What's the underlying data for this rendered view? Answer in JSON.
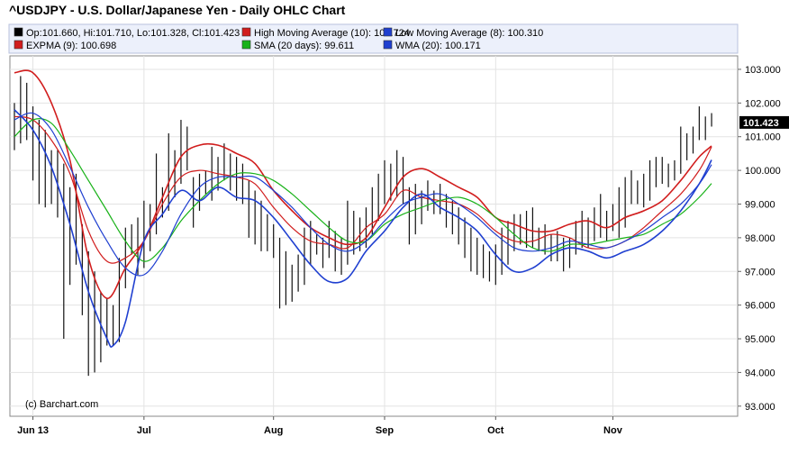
{
  "chart_data": {
    "type": "line",
    "title": "^USDJPY - U.S. Dollar/Japanese Yen - Daily OHLC Chart",
    "credit": "(c) Barchart.com",
    "legend": [
      {
        "text": "Op:101.660, Hi:101.710, Lo:101.328, Cl:101.423",
        "color": "#000000"
      },
      {
        "text": "High Moving Average (10): 100.724",
        "color": "#d11d1d"
      },
      {
        "text": "Low Moving Average (8): 100.310",
        "color": "#1f3fd0"
      },
      {
        "text": "EXPMA (9): 100.698",
        "color": "#d11d1d"
      },
      {
        "text": "SMA (20 days): 99.611",
        "color": "#19b219"
      },
      {
        "text": "WMA (20): 100.171",
        "color": "#1f3fd0"
      }
    ],
    "last_value_label": "101.423",
    "last_value": 101.423,
    "ylim": [
      92.7,
      103.4
    ],
    "y_ticks": [
      93,
      94,
      95,
      96,
      97,
      98,
      99,
      100,
      101,
      102,
      103
    ],
    "y_tick_labels": [
      "93.000",
      "94.000",
      "95.000",
      "96.000",
      "97.000",
      "98.000",
      "99.000",
      "100.000",
      "101.000",
      "102.000",
      "103.000"
    ],
    "x_count": 114,
    "x_ticks": [
      {
        "label": "Jun 13",
        "index": 3
      },
      {
        "label": "Jul",
        "index": 21
      },
      {
        "label": "Aug",
        "index": 42
      },
      {
        "label": "Sep",
        "index": 60
      },
      {
        "label": "Oct",
        "index": 78
      },
      {
        "label": "Nov",
        "index": 97
      }
    ],
    "ohlc": [
      {
        "h": 102.0,
        "l": 100.6
      },
      {
        "h": 102.8,
        "l": 100.8
      },
      {
        "h": 102.6,
        "l": 100.9
      },
      {
        "h": 101.9,
        "l": 99.7
      },
      {
        "h": 101.5,
        "l": 99.0
      },
      {
        "h": 101.2,
        "l": 98.9
      },
      {
        "h": 100.6,
        "l": 99.0
      },
      {
        "h": 100.6,
        "l": 98.6
      },
      {
        "h": 100.2,
        "l": 95.0
      },
      {
        "h": 99.5,
        "l": 96.6
      },
      {
        "h": 99.9,
        "l": 97.2
      },
      {
        "h": 98.4,
        "l": 95.7
      },
      {
        "h": 97.6,
        "l": 93.9
      },
      {
        "h": 97.0,
        "l": 94.0
      },
      {
        "h": 96.4,
        "l": 94.3
      },
      {
        "h": 96.2,
        "l": 94.8
      },
      {
        "h": 96.0,
        "l": 94.8
      },
      {
        "h": 97.4,
        "l": 94.9
      },
      {
        "h": 98.3,
        "l": 96.5
      },
      {
        "h": 98.4,
        "l": 97.5
      },
      {
        "h": 98.6,
        "l": 96.9
      },
      {
        "h": 99.1,
        "l": 97.1
      },
      {
        "h": 99.0,
        "l": 97.6
      },
      {
        "h": 100.5,
        "l": 98.1
      },
      {
        "h": 99.5,
        "l": 98.6
      },
      {
        "h": 101.1,
        "l": 98.8
      },
      {
        "h": 100.6,
        "l": 99.2
      },
      {
        "h": 101.5,
        "l": 99.6
      },
      {
        "h": 101.3,
        "l": 100.0
      },
      {
        "h": 99.8,
        "l": 98.3
      },
      {
        "h": 99.9,
        "l": 98.8
      },
      {
        "h": 100.0,
        "l": 99.3
      },
      {
        "h": 100.7,
        "l": 99.1
      },
      {
        "h": 100.4,
        "l": 99.4
      },
      {
        "h": 100.8,
        "l": 99.7
      },
      {
        "h": 100.5,
        "l": 99.4
      },
      {
        "h": 100.4,
        "l": 99.1
      },
      {
        "h": 100.2,
        "l": 99.0
      },
      {
        "h": 99.7,
        "l": 98.0
      },
      {
        "h": 99.4,
        "l": 97.8
      },
      {
        "h": 99.1,
        "l": 97.6
      },
      {
        "h": 98.7,
        "l": 97.6
      },
      {
        "h": 98.4,
        "l": 97.4
      },
      {
        "h": 98.0,
        "l": 95.9
      },
      {
        "h": 97.6,
        "l": 96.0
      },
      {
        "h": 97.2,
        "l": 96.1
      },
      {
        "h": 97.5,
        "l": 96.4
      },
      {
        "h": 98.3,
        "l": 96.6
      },
      {
        "h": 98.5,
        "l": 97.2
      },
      {
        "h": 98.1,
        "l": 97.5
      },
      {
        "h": 98.0,
        "l": 97.1
      },
      {
        "h": 98.5,
        "l": 97.4
      },
      {
        "h": 98.2,
        "l": 97.0
      },
      {
        "h": 98.0,
        "l": 96.9
      },
      {
        "h": 99.1,
        "l": 97.2
      },
      {
        "h": 98.8,
        "l": 97.5
      },
      {
        "h": 98.6,
        "l": 97.6
      },
      {
        "h": 98.9,
        "l": 97.7
      },
      {
        "h": 99.5,
        "l": 98.1
      },
      {
        "h": 99.9,
        "l": 98.5
      },
      {
        "h": 100.3,
        "l": 99.0
      },
      {
        "h": 100.2,
        "l": 99.1
      },
      {
        "h": 100.6,
        "l": 99.2
      },
      {
        "h": 100.4,
        "l": 99.0
      },
      {
        "h": 99.5,
        "l": 97.8
      },
      {
        "h": 99.6,
        "l": 98.1
      },
      {
        "h": 99.4,
        "l": 98.4
      },
      {
        "h": 99.7,
        "l": 98.8
      },
      {
        "h": 99.4,
        "l": 98.7
      },
      {
        "h": 99.6,
        "l": 98.7
      },
      {
        "h": 99.3,
        "l": 98.3
      },
      {
        "h": 99.1,
        "l": 98.1
      },
      {
        "h": 98.9,
        "l": 97.8
      },
      {
        "h": 98.6,
        "l": 97.4
      },
      {
        "h": 98.3,
        "l": 97.0
      },
      {
        "h": 98.0,
        "l": 96.9
      },
      {
        "h": 97.8,
        "l": 96.8
      },
      {
        "h": 97.6,
        "l": 96.7
      },
      {
        "h": 97.8,
        "l": 96.6
      },
      {
        "h": 98.3,
        "l": 96.9
      },
      {
        "h": 98.5,
        "l": 97.2
      },
      {
        "h": 98.7,
        "l": 97.6
      },
      {
        "h": 98.7,
        "l": 97.8
      },
      {
        "h": 98.8,
        "l": 97.7
      },
      {
        "h": 98.9,
        "l": 97.7
      },
      {
        "h": 98.3,
        "l": 97.6
      },
      {
        "h": 98.4,
        "l": 97.5
      },
      {
        "h": 98.1,
        "l": 97.3
      },
      {
        "h": 98.2,
        "l": 97.3
      },
      {
        "h": 98.0,
        "l": 97.0
      },
      {
        "h": 98.0,
        "l": 97.1
      },
      {
        "h": 98.5,
        "l": 97.5
      },
      {
        "h": 98.8,
        "l": 97.7
      },
      {
        "h": 98.6,
        "l": 97.7
      },
      {
        "h": 98.9,
        "l": 97.9
      },
      {
        "h": 99.3,
        "l": 98.0
      },
      {
        "h": 98.8,
        "l": 97.9
      },
      {
        "h": 99.0,
        "l": 98.2
      },
      {
        "h": 99.5,
        "l": 98.0
      },
      {
        "h": 99.8,
        "l": 98.3
      },
      {
        "h": 100.0,
        "l": 99.0
      },
      {
        "h": 99.7,
        "l": 99.0
      },
      {
        "h": 99.9,
        "l": 98.9
      },
      {
        "h": 100.3,
        "l": 99.1
      },
      {
        "h": 100.4,
        "l": 99.5
      },
      {
        "h": 100.4,
        "l": 99.6
      },
      {
        "h": 100.2,
        "l": 99.5
      },
      {
        "h": 100.3,
        "l": 99.7
      },
      {
        "h": 101.3,
        "l": 99.9
      },
      {
        "h": 101.1,
        "l": 100.3
      },
      {
        "h": 101.3,
        "l": 100.5
      },
      {
        "h": 101.9,
        "l": 100.9
      },
      {
        "h": 101.6,
        "l": 100.9
      },
      {
        "h": 101.7,
        "l": 101.3
      }
    ],
    "series": [
      {
        "name": "High Moving Average (10)",
        "color": "#d11d1d",
        "width": 1.6,
        "points": [
          [
            0,
            102.9
          ],
          [
            3,
            102.9
          ],
          [
            6,
            102.0
          ],
          [
            9,
            100.3
          ],
          [
            12,
            97.4
          ],
          [
            15,
            96.2
          ],
          [
            18,
            97.1
          ],
          [
            21,
            97.9
          ],
          [
            24,
            99.2
          ],
          [
            27,
            100.4
          ],
          [
            30,
            100.75
          ],
          [
            33,
            100.75
          ],
          [
            36,
            100.5
          ],
          [
            39,
            100.2
          ],
          [
            42,
            99.4
          ],
          [
            45,
            98.8
          ],
          [
            48,
            98.3
          ],
          [
            51,
            98.0
          ],
          [
            54,
            97.8
          ],
          [
            57,
            98.0
          ],
          [
            60,
            98.9
          ],
          [
            63,
            99.8
          ],
          [
            66,
            100.05
          ],
          [
            69,
            99.8
          ],
          [
            72,
            99.5
          ],
          [
            75,
            99.2
          ],
          [
            78,
            98.6
          ],
          [
            81,
            98.4
          ],
          [
            84,
            98.2
          ],
          [
            87,
            98.2
          ],
          [
            90,
            98.4
          ],
          [
            93,
            98.5
          ],
          [
            96,
            98.3
          ],
          [
            99,
            98.6
          ],
          [
            102,
            98.8
          ],
          [
            105,
            99.1
          ],
          [
            108,
            99.7
          ],
          [
            111,
            100.4
          ],
          [
            113,
            100.724
          ]
        ]
      },
      {
        "name": "EXPMA (9)",
        "color": "#d11d1d",
        "width": 1.2,
        "points": [
          [
            0,
            101.6
          ],
          [
            3,
            101.5
          ],
          [
            6,
            100.9
          ],
          [
            9,
            99.9
          ],
          [
            12,
            98.2
          ],
          [
            15,
            97.3
          ],
          [
            18,
            97.4
          ],
          [
            21,
            97.9
          ],
          [
            24,
            99.0
          ],
          [
            27,
            99.8
          ],
          [
            30,
            100.0
          ],
          [
            33,
            99.9
          ],
          [
            36,
            99.8
          ],
          [
            39,
            99.6
          ],
          [
            42,
            98.9
          ],
          [
            45,
            98.3
          ],
          [
            48,
            97.9
          ],
          [
            51,
            97.8
          ],
          [
            54,
            97.7
          ],
          [
            57,
            98.3
          ],
          [
            60,
            98.7
          ],
          [
            63,
            99.4
          ],
          [
            66,
            99.2
          ],
          [
            69,
            99.1
          ],
          [
            72,
            99.0
          ],
          [
            75,
            98.7
          ],
          [
            78,
            98.2
          ],
          [
            81,
            97.9
          ],
          [
            84,
            97.9
          ],
          [
            87,
            98.1
          ],
          [
            90,
            98.0
          ],
          [
            93,
            97.7
          ],
          [
            96,
            97.7
          ],
          [
            99,
            97.9
          ],
          [
            102,
            98.3
          ],
          [
            105,
            98.8
          ],
          [
            108,
            99.3
          ],
          [
            111,
            100.0
          ],
          [
            113,
            100.698
          ]
        ]
      },
      {
        "name": "SMA (20 days)",
        "color": "#19b219",
        "width": 1.2,
        "points": [
          [
            0,
            101.0
          ],
          [
            3,
            101.5
          ],
          [
            6,
            101.4
          ],
          [
            9,
            100.6
          ],
          [
            12,
            99.7
          ],
          [
            15,
            98.8
          ],
          [
            18,
            97.9
          ],
          [
            21,
            97.3
          ],
          [
            24,
            97.7
          ],
          [
            27,
            98.5
          ],
          [
            30,
            99.1
          ],
          [
            33,
            99.6
          ],
          [
            36,
            99.9
          ],
          [
            39,
            99.9
          ],
          [
            42,
            99.7
          ],
          [
            45,
            99.3
          ],
          [
            48,
            98.8
          ],
          [
            51,
            98.3
          ],
          [
            54,
            97.9
          ],
          [
            57,
            97.9
          ],
          [
            60,
            98.4
          ],
          [
            63,
            98.7
          ],
          [
            66,
            98.9
          ],
          [
            69,
            99.1
          ],
          [
            72,
            99.2
          ],
          [
            75,
            99.0
          ],
          [
            78,
            98.6
          ],
          [
            81,
            98.1
          ],
          [
            84,
            97.7
          ],
          [
            87,
            97.6
          ],
          [
            90,
            97.8
          ],
          [
            93,
            97.8
          ],
          [
            96,
            97.9
          ],
          [
            99,
            98.0
          ],
          [
            102,
            98.1
          ],
          [
            105,
            98.4
          ],
          [
            108,
            98.7
          ],
          [
            111,
            99.2
          ],
          [
            113,
            99.611
          ]
        ]
      },
      {
        "name": "WMA (20)",
        "color": "#1f3fd0",
        "width": 1.2,
        "points": [
          [
            0,
            101.5
          ],
          [
            3,
            101.7
          ],
          [
            6,
            101.2
          ],
          [
            9,
            100.1
          ],
          [
            12,
            98.9
          ],
          [
            15,
            97.9
          ],
          [
            18,
            97.1
          ],
          [
            21,
            96.9
          ],
          [
            24,
            97.6
          ],
          [
            27,
            98.7
          ],
          [
            30,
            99.5
          ],
          [
            33,
            99.8
          ],
          [
            36,
            99.8
          ],
          [
            39,
            99.8
          ],
          [
            42,
            99.4
          ],
          [
            45,
            98.9
          ],
          [
            48,
            98.3
          ],
          [
            51,
            97.8
          ],
          [
            54,
            97.6
          ],
          [
            57,
            97.9
          ],
          [
            60,
            98.5
          ],
          [
            63,
            99.0
          ],
          [
            66,
            99.2
          ],
          [
            69,
            99.3
          ],
          [
            72,
            99.0
          ],
          [
            75,
            98.6
          ],
          [
            78,
            98.1
          ],
          [
            81,
            97.7
          ],
          [
            84,
            97.6
          ],
          [
            87,
            97.7
          ],
          [
            90,
            97.9
          ],
          [
            93,
            97.8
          ],
          [
            96,
            97.7
          ],
          [
            99,
            97.9
          ],
          [
            102,
            98.2
          ],
          [
            105,
            98.6
          ],
          [
            108,
            99.0
          ],
          [
            111,
            99.6
          ],
          [
            113,
            100.171
          ]
        ]
      },
      {
        "name": "Low Moving Average (8)",
        "color": "#1f3fd0",
        "width": 1.6,
        "points": [
          [
            0,
            101.8
          ],
          [
            3,
            101.2
          ],
          [
            6,
            100.1
          ],
          [
            9,
            98.4
          ],
          [
            12,
            96.4
          ],
          [
            15,
            95.0
          ],
          [
            16,
            94.8
          ],
          [
            18,
            95.5
          ],
          [
            21,
            97.9
          ],
          [
            24,
            98.7
          ],
          [
            27,
            99.4
          ],
          [
            30,
            99.1
          ],
          [
            33,
            99.5
          ],
          [
            36,
            99.2
          ],
          [
            39,
            99.1
          ],
          [
            42,
            98.6
          ],
          [
            45,
            97.9
          ],
          [
            48,
            97.2
          ],
          [
            51,
            96.7
          ],
          [
            54,
            96.8
          ],
          [
            57,
            97.6
          ],
          [
            60,
            98.2
          ],
          [
            63,
            98.9
          ],
          [
            66,
            99.3
          ],
          [
            69,
            98.9
          ],
          [
            72,
            98.6
          ],
          [
            75,
            98.2
          ],
          [
            78,
            97.5
          ],
          [
            81,
            97.0
          ],
          [
            84,
            97.1
          ],
          [
            87,
            97.5
          ],
          [
            90,
            97.7
          ],
          [
            93,
            97.6
          ],
          [
            96,
            97.4
          ],
          [
            99,
            97.6
          ],
          [
            102,
            97.8
          ],
          [
            105,
            98.2
          ],
          [
            108,
            98.8
          ],
          [
            111,
            99.6
          ],
          [
            113,
            100.31
          ]
        ]
      }
    ]
  }
}
